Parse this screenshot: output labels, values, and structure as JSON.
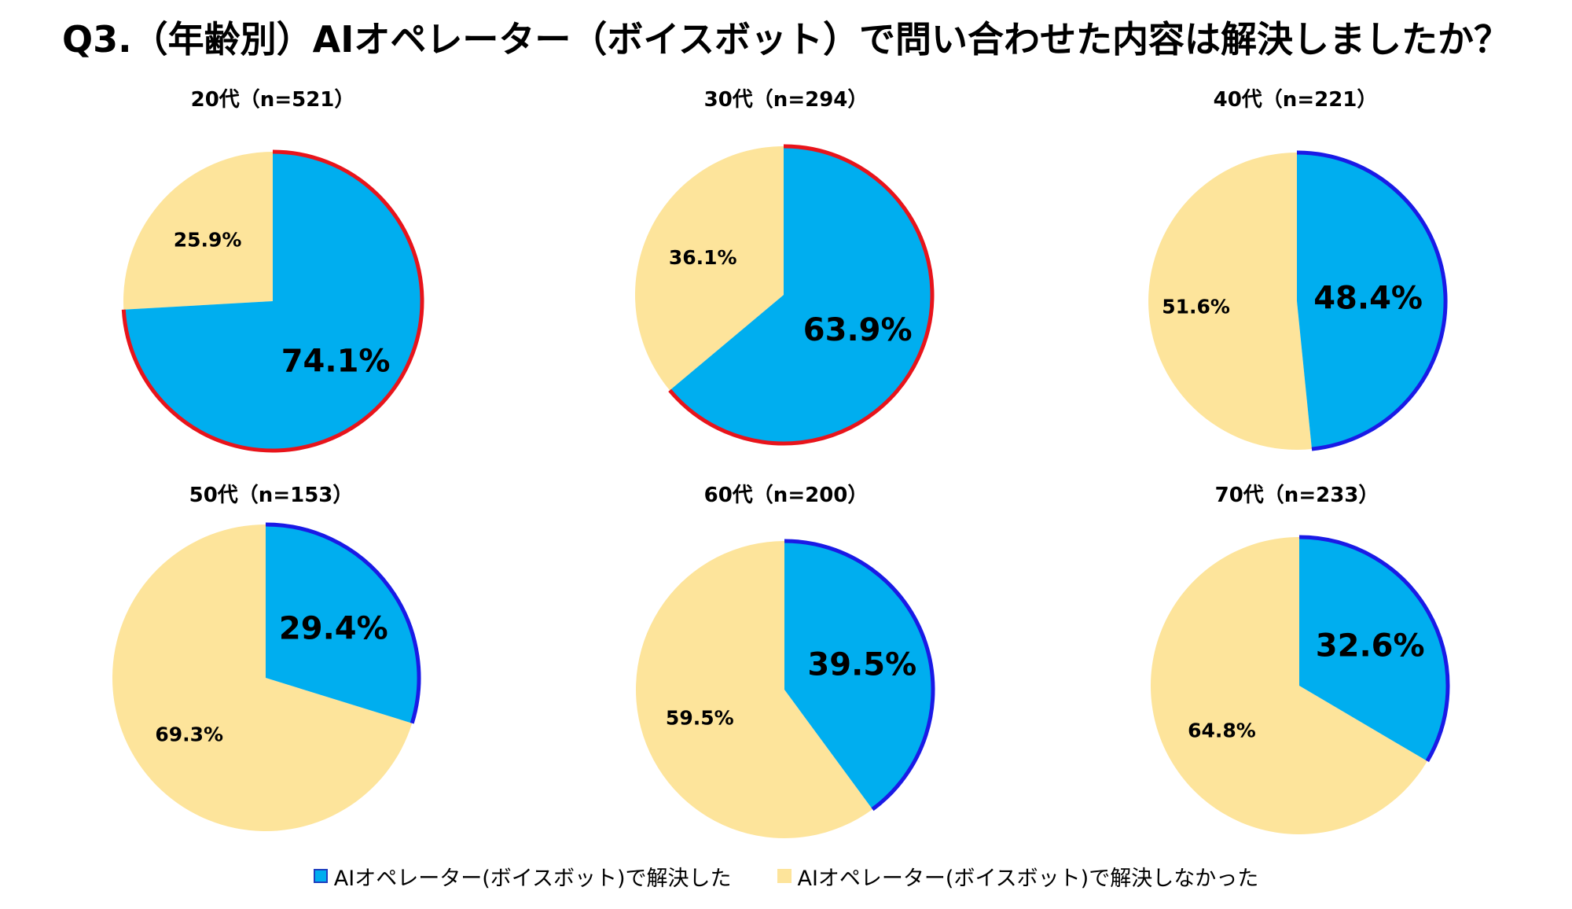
{
  "title": "Q3.（年齢別）AIオペレーター（ボイスボット）で問い合わせた内容は解決しましたか？",
  "colors": {
    "resolved": "#00AEEF",
    "unresolved": "#FDE49B",
    "highlight_red": "#E8141B",
    "highlight_blue": "#1A1AE6"
  },
  "legend": {
    "resolved": "AIオペレーター(ボイスボット)で解決した",
    "unresolved": "AIオペレーター(ボイスボット)で解決しなかった"
  },
  "chart_data": [
    {
      "type": "pie",
      "title": "20代（n=521）",
      "labels": [
        "AIオペレーター(ボイスボット)で解決した",
        "AIオペレーター(ボイスボット)で解決しなかった"
      ],
      "values": [
        74.1,
        25.9
      ],
      "value_labels": [
        "74.1%",
        "25.9%"
      ],
      "outline_color": "red"
    },
    {
      "type": "pie",
      "title": "30代（n=294）",
      "labels": [
        "AIオペレーター(ボイスボット)で解決した",
        "AIオペレーター(ボイスボット)で解決しなかった"
      ],
      "values": [
        63.9,
        36.1
      ],
      "value_labels": [
        "63.9%",
        "36.1%"
      ],
      "outline_color": "red"
    },
    {
      "type": "pie",
      "title": "40代（n=221）",
      "labels": [
        "AIオペレーター(ボイスボット)で解決した",
        "AIオペレーター(ボイスボット)で解決しなかった"
      ],
      "values": [
        48.4,
        51.6
      ],
      "value_labels": [
        "48.4%",
        "51.6%"
      ],
      "outline_color": "blue"
    },
    {
      "type": "pie",
      "title": "50代（n=153）",
      "labels": [
        "AIオペレーター(ボイスボット)で解決した",
        "AIオペレーター(ボイスボット)で解決しなかった"
      ],
      "values": [
        29.4,
        69.3
      ],
      "value_labels": [
        "29.4%",
        "69.3%"
      ],
      "outline_color": "blue"
    },
    {
      "type": "pie",
      "title": "60代（n=200）",
      "labels": [
        "AIオペレーター(ボイスボット)で解決した",
        "AIオペレーター(ボイスボット)で解決しなかった"
      ],
      "values": [
        39.5,
        59.5
      ],
      "value_labels": [
        "39.5%",
        "59.5%"
      ],
      "outline_color": "blue"
    },
    {
      "type": "pie",
      "title": "70代（n=233）",
      "labels": [
        "AIオペレーター(ボイスボット)で解決した",
        "AIオペレーター(ボイスボット)で解決しなかった"
      ],
      "values": [
        32.6,
        64.8
      ],
      "value_labels": [
        "32.6%",
        "64.8%"
      ],
      "outline_color": "blue"
    }
  ]
}
